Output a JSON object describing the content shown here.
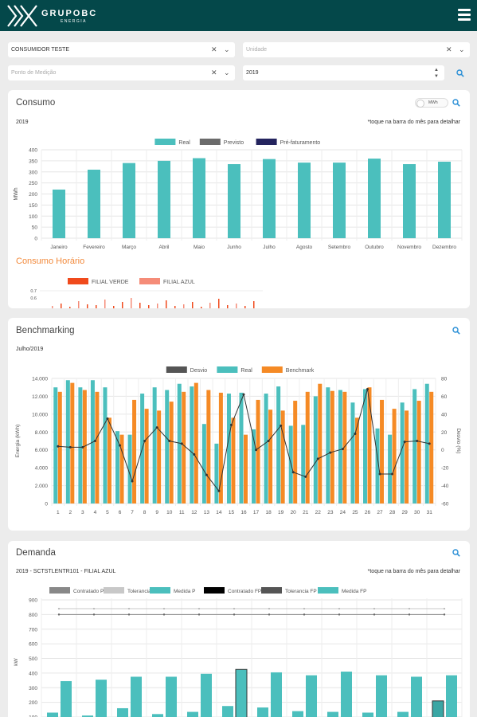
{
  "header": {
    "brand": "GRUPOBC",
    "brand_sub": "ENERGIA"
  },
  "filters": {
    "consumer": "CONSUMIDOR TESTE",
    "unit_placeholder": "Unidade",
    "point_placeholder": "Ponto de Medição",
    "year": "2019"
  },
  "consumo": {
    "title": "Consumo",
    "toggle": "MWh",
    "year_label": "2019",
    "hint": "*toque na barra do mês para detalhar",
    "legend": [
      {
        "name": "Real",
        "color": "#4bbfbd"
      },
      {
        "name": "Previsto",
        "color": "#6b6b6b"
      },
      {
        "name": "Pré-faturamento",
        "color": "#24245e"
      }
    ]
  },
  "consumo_horario": {
    "title": "Consumo Horário",
    "legend": [
      {
        "name": "FILIAL VERDE",
        "color": "#f04a1c"
      },
      {
        "name": "FILIAL AZUL",
        "color": "#f58c78"
      }
    ],
    "ticks": [
      "0.7",
      "0.6"
    ]
  },
  "benchmarking": {
    "title": "Benchmarking",
    "period": "Julho/2019",
    "legend": [
      {
        "name": "Desvio",
        "color": "#555555"
      },
      {
        "name": "Real",
        "color": "#4bbfbd"
      },
      {
        "name": "Benchmark",
        "color": "#f58a25"
      }
    ]
  },
  "demanda": {
    "title": "Demanda",
    "subtitle": "2019 - SCTSTLENTR101 - FILIAL AZUL",
    "hint": "*toque na barra do mês para detalhar",
    "legend": [
      {
        "name": "Contratado P",
        "color": "#888888"
      },
      {
        "name": "Tolerancia P",
        "color": "#c8c8c8"
      },
      {
        "name": "Medida P",
        "color": "#4bbfbd"
      },
      {
        "name": "Contratado FP",
        "color": "#000000"
      },
      {
        "name": "Tolerancia FP",
        "color": "#555555"
      },
      {
        "name": "Medida FP",
        "color": "#4bbfbd"
      }
    ]
  },
  "chart_data": [
    {
      "type": "bar",
      "title": "",
      "ylabel": "MWh",
      "ylim": [
        0,
        400
      ],
      "yticks": [
        0,
        50,
        100,
        150,
        200,
        250,
        300,
        350,
        400
      ],
      "categories": [
        "Janeiro",
        "Fevereiro",
        "Março",
        "Abril",
        "Maio",
        "Junho",
        "Julho",
        "Agosto",
        "Setembro",
        "Outubro",
        "Novembro",
        "Dezembro"
      ],
      "series": [
        {
          "name": "Real",
          "values": [
            220,
            310,
            340,
            350,
            362,
            335,
            358,
            342,
            342,
            360,
            335,
            346
          ]
        }
      ]
    },
    {
      "type": "bar",
      "title": "",
      "ylabel": "Energia (kWh)",
      "y2label": "Desvio (%)",
      "ylim": [
        0,
        14000
      ],
      "yticks": [
        "0",
        "2.000",
        "4.000",
        "6.000",
        "8.000",
        "10.000",
        "12.000",
        "14.000"
      ],
      "y2lim": [
        -60,
        80
      ],
      "y2ticks": [
        -60,
        -40,
        -20,
        0,
        20,
        40,
        60,
        80
      ],
      "categories": [
        "1",
        "2",
        "3",
        "4",
        "5",
        "6",
        "7",
        "8",
        "9",
        "10",
        "11",
        "12",
        "13",
        "14",
        "15",
        "16",
        "17",
        "18",
        "19",
        "20",
        "21",
        "22",
        "23",
        "24",
        "25",
        "26",
        "27",
        "28",
        "29",
        "30",
        "31"
      ],
      "series": [
        {
          "name": "Real",
          "values": [
            13000,
            13800,
            13000,
            13800,
            13000,
            8100,
            7700,
            12300,
            13000,
            12700,
            13400,
            13100,
            8900,
            6700,
            12300,
            12400,
            8300,
            12300,
            13100,
            8700,
            8800,
            12000,
            13000,
            12700,
            11300,
            12800,
            8400,
            7700,
            11300,
            12800,
            13400
          ]
        },
        {
          "name": "Benchmark",
          "values": [
            12500,
            13500,
            12700,
            12500,
            9600,
            7700,
            11600,
            10600,
            10400,
            11400,
            12500,
            13500,
            12700,
            12400,
            9600,
            7700,
            11600,
            10500,
            10400,
            11500,
            12500,
            13400,
            12600,
            12500,
            9600,
            13000,
            11600,
            10600,
            10400,
            11500,
            12500
          ]
        },
        {
          "name": "Desvio",
          "values": [
            4,
            3,
            3,
            10,
            35,
            5,
            -35,
            10,
            25,
            10,
            7,
            -5,
            -28,
            -46,
            28,
            62,
            0,
            10,
            27,
            -25,
            -30,
            -10,
            -3,
            1,
            18,
            68,
            -27,
            -27,
            9,
            10,
            7
          ]
        }
      ]
    },
    {
      "type": "bar",
      "title": "",
      "ylabel": "kW",
      "yticks": [
        100,
        200,
        300,
        400,
        500,
        600,
        700,
        800,
        900
      ],
      "series": [
        {
          "name": "Medida P",
          "values": [
            130,
            110,
            160,
            120,
            135,
            175,
            165,
            140,
            135,
            130,
            135,
            210
          ]
        },
        {
          "name": "Medida FP",
          "values": [
            345,
            355,
            375,
            375,
            395,
            425,
            405,
            385,
            410,
            385,
            375,
            385
          ]
        },
        {
          "name": "Contratado P",
          "values": [
            800,
            800,
            800,
            800,
            800,
            800,
            800,
            800,
            800,
            800,
            800,
            800
          ]
        },
        {
          "name": "Tolerancia P",
          "values": [
            840,
            840,
            840,
            840,
            840,
            840,
            840,
            840,
            840,
            840,
            840,
            840
          ]
        }
      ]
    }
  ]
}
